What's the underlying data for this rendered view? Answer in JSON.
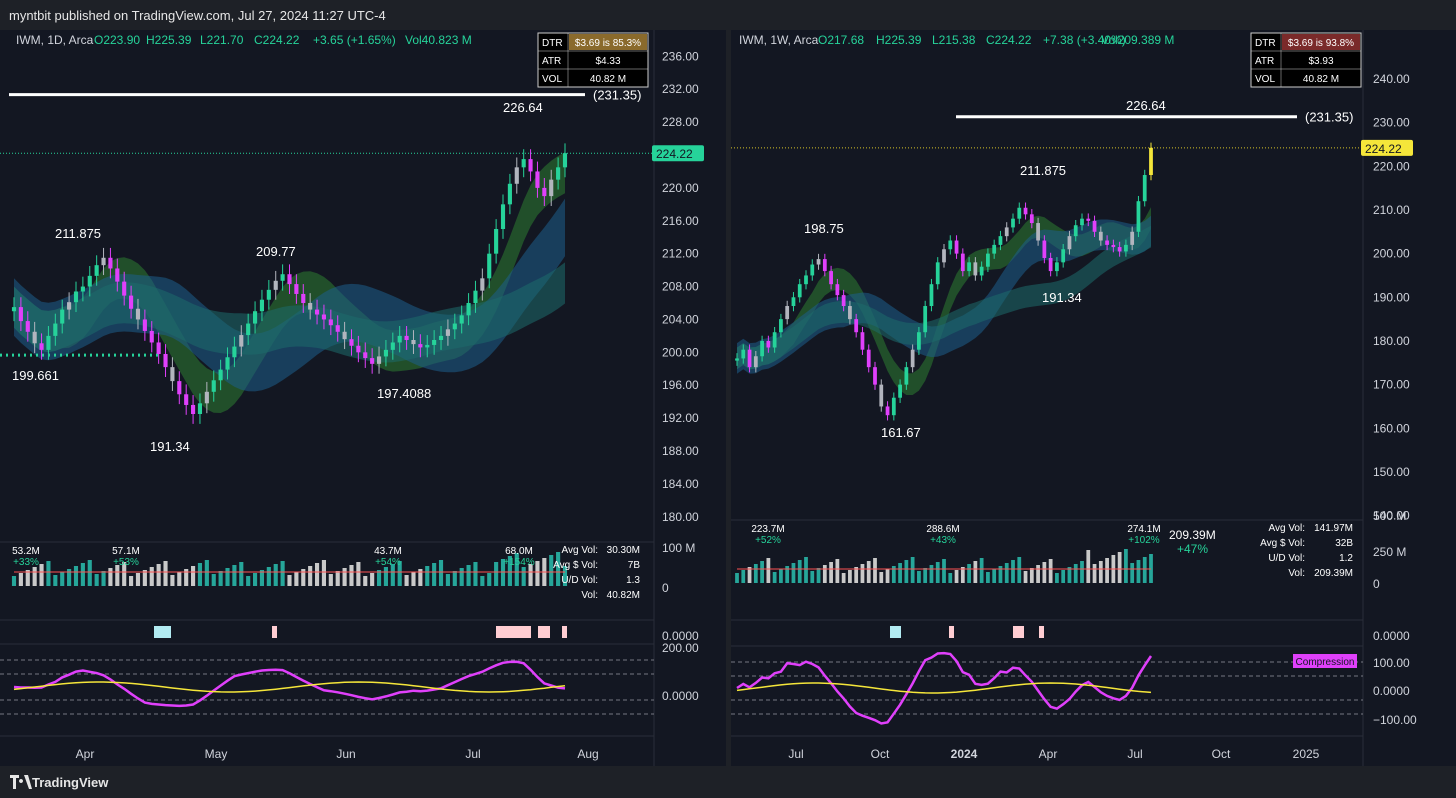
{
  "header": {
    "published_by": "myntbit published on TradingView.com, Jul 27, 2024 11:27 UTC-4"
  },
  "footer": {
    "brand": "TradingView"
  },
  "colors": {
    "bg": "#131722",
    "up": "#26d39a",
    "down": "#e040fb",
    "neutral": "#b2b5be",
    "highlight": "#f5e63a",
    "ribbon_green": "#2e7d32",
    "ribbon_red": "#7b1f1f",
    "ribbon_blue": "#1e5f8c",
    "ribbon_teal": "#1d6b6b"
  },
  "chart_data": [
    {
      "type": "candlestick",
      "panel": "left",
      "symbol_line": {
        "symbol": "IWM, 1D, Arca",
        "open": "O223.90",
        "high": "H225.39",
        "low": "L221.70",
        "close": "C224.22",
        "change": "+3.65 (+1.65%)",
        "volume": "Vol40.823 M"
      },
      "info_box": [
        {
          "label": "DTR",
          "value": "$3.69 is 85.3%"
        },
        {
          "label": "ATR",
          "value": "$4.33"
        },
        {
          "label": "VOL",
          "value": "40.82 M"
        }
      ],
      "y_ticks": [
        "236.00",
        "232.00",
        "228.00",
        "224.00",
        "220.00",
        "216.00",
        "212.00",
        "208.00",
        "204.00",
        "200.00",
        "196.00",
        "192.00",
        "188.00",
        "184.00",
        "180.00"
      ],
      "ylim": [
        179,
        237.5
      ],
      "x_ticks": [
        "Apr",
        "May",
        "Jun",
        "Jul",
        "Aug"
      ],
      "last_price": "224.22",
      "resistance_label": "(231.35)",
      "resistance": 231.35,
      "support": 199.661,
      "annotations": [
        "211.875",
        "199.661",
        "191.34",
        "209.77",
        "197.4088",
        "226.64"
      ],
      "closes": [
        205.5,
        203.8,
        202.5,
        201.1,
        200.3,
        202.0,
        203.5,
        205.2,
        206.1,
        207.4,
        208.0,
        209.3,
        210.6,
        211.5,
        210.2,
        208.6,
        206.9,
        205.3,
        204.0,
        202.6,
        201.2,
        199.8,
        198.2,
        196.5,
        194.9,
        193.6,
        192.5,
        193.8,
        195.2,
        196.6,
        197.9,
        199.4,
        200.7,
        202.1,
        203.5,
        205.0,
        206.4,
        207.6,
        208.7,
        209.5,
        208.3,
        207.1,
        206.0,
        205.2,
        204.6,
        204.0,
        203.3,
        202.5,
        201.6,
        200.8,
        200.0,
        199.3,
        198.6,
        199.5,
        200.3,
        201.2,
        202.0,
        201.5,
        201.0,
        200.6,
        200.9,
        201.5,
        202.0,
        202.8,
        203.5,
        204.5,
        206.0,
        207.5,
        209.0,
        212.0,
        215.0,
        218.0,
        220.5,
        222.5,
        223.5,
        222.0,
        220.0,
        219.0,
        221.0,
        222.5,
        224.22
      ],
      "volume_panel": {
        "labels": [
          {
            "value": "53.2M",
            "pct": "+33%"
          },
          {
            "value": "57.1M",
            "pct": "+53%"
          },
          {
            "value": "43.7M",
            "pct": "+54%"
          },
          {
            "value": "68.0M",
            "pct": "+154%"
          }
        ],
        "stats": [
          {
            "label": "Avg Vol:",
            "value": "30.30M"
          },
          {
            "label": "Avg $ Vol:",
            "value": "7B"
          },
          {
            "label": "U/D Vol:",
            "value": "1.3"
          },
          {
            "label": "Vol:",
            "value": "40.82M"
          }
        ],
        "axis": [
          "100 M",
          "0"
        ]
      },
      "signal_axis": "0.0000",
      "oscillator_axis": [
        "200.00",
        "0.0000"
      ]
    },
    {
      "type": "candlestick",
      "panel": "right",
      "symbol_line": {
        "symbol": "IWM, 1W, Arca",
        "open": "O217.68",
        "high": "H225.39",
        "low": "L215.38",
        "close": "C224.22",
        "change": "+7.38 (+3.40%)",
        "volume": "Vol209.389 M"
      },
      "info_box": [
        {
          "label": "DTR",
          "value": "$3.69 is 93.8%"
        },
        {
          "label": "ATR",
          "value": "$3.93"
        },
        {
          "label": "VOL",
          "value": "40.82 M"
        }
      ],
      "y_ticks": [
        "240.00",
        "230.00",
        "220.00",
        "210.00",
        "200.00",
        "190.00",
        "180.00",
        "170.00",
        "160.00",
        "150.00",
        "140.00"
      ],
      "ylim": [
        139,
        248
      ],
      "x_ticks": [
        "Jul",
        "Oct",
        "2024",
        "Apr",
        "Jul",
        "Oct",
        "2025"
      ],
      "last_price": "224.22",
      "resistance_label": "(231.35)",
      "resistance": 231.35,
      "annotations": [
        "198.75",
        "161.67",
        "211.875",
        "191.34",
        "226.64"
      ],
      "closes": [
        176.0,
        178.0,
        174.0,
        176.5,
        180.0,
        178.5,
        182.0,
        185.0,
        188.0,
        190.0,
        193.0,
        195.0,
        197.5,
        198.75,
        196.0,
        193.0,
        190.5,
        188.0,
        185.0,
        182.0,
        178.0,
        174.0,
        170.0,
        165.0,
        163.0,
        167.0,
        170.0,
        174.0,
        178.0,
        182.0,
        188.0,
        193.0,
        198.0,
        201.0,
        203.0,
        200.0,
        196.0,
        198.0,
        195.0,
        197.0,
        200.0,
        202.0,
        204.0,
        206.0,
        208.0,
        210.5,
        209.0,
        207.0,
        203.0,
        199.0,
        196.0,
        198.0,
        201.0,
        204.0,
        206.5,
        208.0,
        207.5,
        205.0,
        203.0,
        202.0,
        201.5,
        200.5,
        202.0,
        205.0,
        212.0,
        218.0,
        224.22
      ],
      "volume_panel": {
        "labels": [
          {
            "value": "223.7M",
            "pct": "+52%"
          },
          {
            "value": "288.6M",
            "pct": "+43%"
          },
          {
            "value": "274.1M",
            "pct": "+102%"
          }
        ],
        "big_label": {
          "value": "209.39M",
          "pct": "+47%"
        },
        "stats": [
          {
            "label": "Avg Vol:",
            "value": "141.97M"
          },
          {
            "label": "Avg $ Vol:",
            "value": "32B"
          },
          {
            "label": "U/D Vol:",
            "value": "1.2"
          },
          {
            "label": "Vol:",
            "value": "209.39M"
          }
        ],
        "axis": [
          "500 M",
          "250 M",
          "0"
        ]
      },
      "signal_axis": "0.0000",
      "oscillator_axis": [
        "100.00",
        "0.0000",
        "−100.00"
      ],
      "oscillator_badge": "Compression"
    }
  ]
}
